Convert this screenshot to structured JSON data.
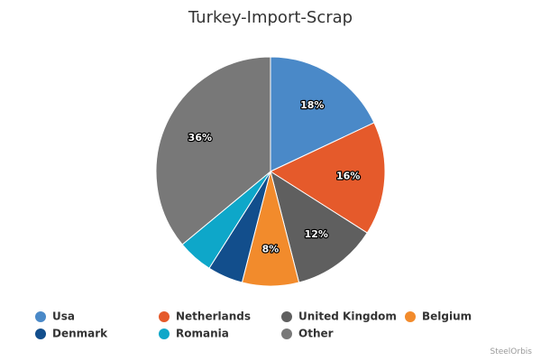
{
  "chart_data": {
    "type": "pie",
    "title": "Turkey-Import-Scrap",
    "categories": [
      "Usa",
      "Netherlands",
      "United Kingdom",
      "Belgium",
      "Denmark",
      "Romania",
      "Other"
    ],
    "values": [
      18,
      16,
      12,
      8,
      5,
      5,
      36
    ],
    "value_labels": [
      "18%",
      "16%",
      "12%",
      "8%",
      null,
      null,
      "36%"
    ],
    "colors": [
      "#4a89c8",
      "#e55a2b",
      "#5f5f5f",
      "#f28b2c",
      "#124e8c",
      "#0ea7c9",
      "#787878"
    ],
    "legend": "bottom",
    "credit": "SteelOrbis"
  }
}
